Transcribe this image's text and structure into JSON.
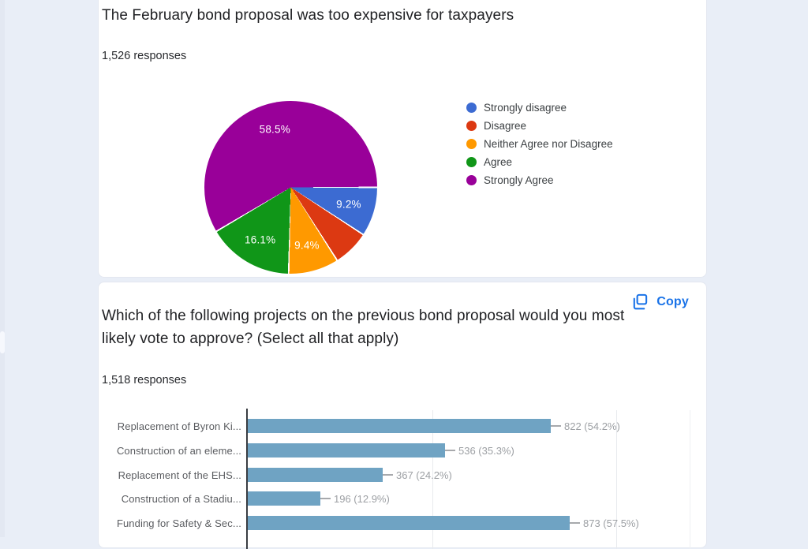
{
  "window": {
    "background": "#e9eef7"
  },
  "card1": {
    "title": "The February bond proposal was too expensive for taxpayers",
    "responses_count": "1,526 responses"
  },
  "card2": {
    "title": "Which of the following projects on the previous bond proposal would you most likely vote to approve? (Select all that apply)",
    "responses_count": "1,518 responses",
    "copy_button": "Copy",
    "accent_color": "#1a73e8"
  },
  "chart_data": [
    {
      "type": "pie",
      "title": "The February bond proposal was too expensive for taxpayers",
      "categories": [
        "Strongly disagree",
        "Disagree",
        "Neither Agree nor Disagree",
        "Agree",
        "Strongly Agree"
      ],
      "values": [
        9.2,
        6.8,
        9.4,
        16.1,
        58.5
      ],
      "values_unit": "percent_of_responses",
      "slice_labels": [
        "9.2%",
        "",
        "9.4%",
        "16.1%",
        "58.5%"
      ],
      "colors": [
        "#3c6bd2",
        "#dc3912",
        "#ff9900",
        "#109618",
        "#990099"
      ],
      "legend_position": "right",
      "start_angle": "east_clockwise"
    },
    {
      "type": "bar",
      "orientation": "horizontal",
      "categories": [
        "Replacement of Byron Ki...",
        "Construction of an eleme...",
        "Replacement of the EHS...",
        "Construction of a Stadiu...",
        "Funding for Safety & Sec..."
      ],
      "values": [
        822,
        536,
        367,
        196,
        873
      ],
      "value_labels": [
        "822 (54.2%)",
        "536 (35.3%)",
        "367 (24.2%)",
        "196 (12.9%)",
        "873 (57.5%)"
      ],
      "bar_color": "#6fa3c3",
      "xlim": [
        0,
        1200
      ],
      "gridlines_x": [
        500,
        1000,
        1200
      ],
      "grid": true,
      "legend_position": "none"
    }
  ]
}
